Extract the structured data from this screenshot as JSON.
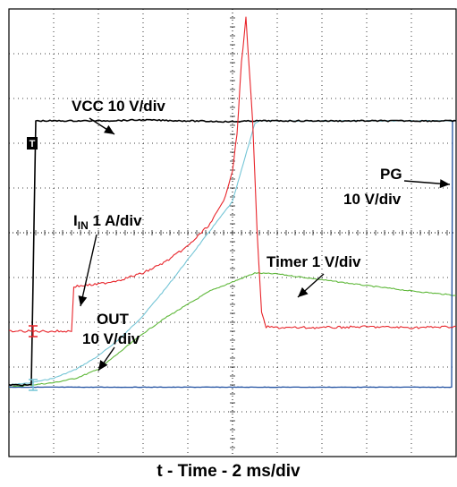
{
  "chart_data": {
    "type": "line",
    "xlabel": "t - Time - 2 ms/div",
    "grid": true,
    "x_unit": "div",
    "xlim": [
      0,
      10
    ],
    "ylim": [
      0,
      10
    ],
    "trigger_marker": "T",
    "colors": {
      "vcc": "#000000",
      "pg": "#1f4fa0",
      "iin": "#e8242a",
      "timer": "#5fb83a",
      "out": "#74c5d6"
    },
    "series": [
      {
        "label_main": "VCC 10 V/div",
        "label_sub": "",
        "label_main2": "",
        "color_key": "vcc",
        "x": [
          0,
          0.5,
          0.6,
          1,
          2,
          3,
          4,
          5,
          5.5,
          6,
          7,
          8,
          9,
          10
        ],
        "y": [
          1.6,
          1.6,
          7.5,
          7.5,
          7.5,
          7.52,
          7.5,
          7.48,
          7.5,
          7.5,
          7.5,
          7.5,
          7.5,
          7.5
        ]
      },
      {
        "label_main": "PG",
        "label_sub": "",
        "label_main2": "10 V/div",
        "color_key": "pg",
        "x": [
          0,
          2,
          4,
          6,
          8,
          9.9,
          9.92,
          10
        ],
        "y": [
          1.55,
          1.55,
          1.55,
          1.55,
          1.55,
          1.55,
          7.5,
          7.5
        ]
      },
      {
        "label_main": "I",
        "label_sub": "IN",
        "label_main2": "1 A/div",
        "color_key": "iin",
        "x": [
          0,
          1.2,
          1.4,
          1.45,
          2,
          2.5,
          3,
          3.5,
          4,
          4.5,
          4.8,
          5,
          5.1,
          5.2,
          5.3,
          5.45,
          5.55,
          5.65,
          5.75,
          6,
          7,
          8,
          9,
          10
        ],
        "y": [
          2.8,
          2.8,
          2.8,
          3.8,
          3.85,
          3.95,
          4.1,
          4.35,
          4.7,
          5.2,
          5.7,
          6.4,
          7.2,
          8.8,
          9.8,
          7.5,
          5.0,
          3.2,
          2.9,
          2.88,
          2.88,
          2.9,
          2.88,
          2.9
        ]
      },
      {
        "label_main": "Timer 1 V/div",
        "label_sub": "",
        "label_main2": "",
        "color_key": "timer",
        "x": [
          0,
          0.5,
          1,
          1.5,
          2,
          2.5,
          3,
          3.5,
          4,
          4.5,
          5,
          5.5,
          6,
          7,
          8,
          9,
          10
        ],
        "y": [
          1.55,
          1.6,
          1.65,
          1.75,
          1.95,
          2.35,
          2.75,
          3.1,
          3.4,
          3.7,
          3.9,
          4.1,
          4.08,
          3.95,
          3.82,
          3.7,
          3.6
        ]
      },
      {
        "label_main": "OUT",
        "label_sub": "",
        "label_main2": "10 V/div",
        "color_key": "out",
        "x": [
          0,
          0.5,
          1,
          1.5,
          2,
          2.5,
          3,
          3.5,
          4,
          4.5,
          5,
          5.2,
          5.4,
          5.5,
          5.6,
          10
        ],
        "y": [
          1.6,
          1.65,
          1.75,
          1.95,
          2.25,
          2.65,
          3.15,
          3.75,
          4.4,
          5.05,
          5.7,
          6.4,
          7.1,
          7.45,
          7.5,
          7.5
        ]
      }
    ]
  }
}
